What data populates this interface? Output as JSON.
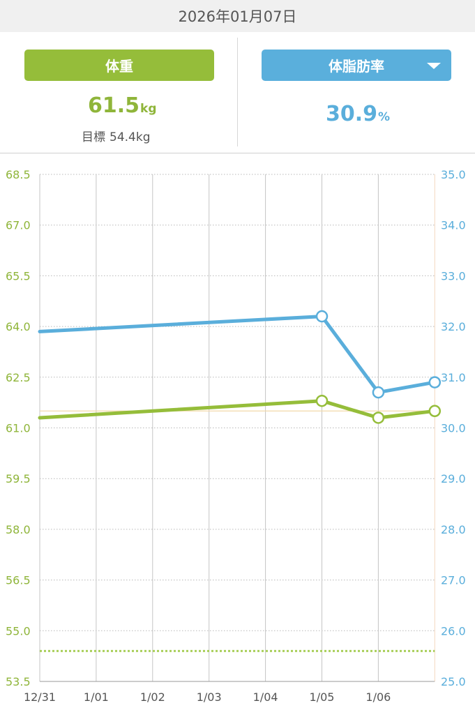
{
  "header": {
    "date": "2026年01月07日"
  },
  "weight_panel": {
    "label": "体重",
    "value": "61.5",
    "unit": "kg",
    "goal_label": "目標",
    "goal_value": "54.4kg"
  },
  "fat_panel": {
    "label": "体脂肪率",
    "value": "30.9",
    "unit": "%"
  },
  "colors": {
    "weight": "#95bd3a",
    "fat": "#5aaedb",
    "header_bg": "#f0f0f0"
  },
  "chart_data": {
    "type": "line",
    "categories": [
      "12/31",
      "1/01",
      "1/02",
      "1/03",
      "1/04",
      "1/05",
      "1/06"
    ],
    "left_axis": {
      "ylim": [
        53.5,
        68.5
      ],
      "ticks": [
        "53.5",
        "55.0",
        "56.5",
        "58.0",
        "59.5",
        "61.0",
        "62.5",
        "64.0",
        "65.5",
        "67.0",
        "68.5"
      ]
    },
    "right_axis": {
      "ylim": [
        25.0,
        35.0
      ],
      "ticks": [
        "25.0",
        "26.0",
        "27.0",
        "28.0",
        "29.0",
        "30.0",
        "31.0",
        "32.0",
        "33.0",
        "34.0",
        "35.0"
      ]
    },
    "series": [
      {
        "key": "weight",
        "axis": "left",
        "color": "#95bd3a",
        "points": [
          {
            "x": 0,
            "y": 61.3
          },
          {
            "x": 5,
            "y": 61.8
          },
          {
            "x": 6,
            "y": 61.3
          },
          {
            "x": 7,
            "y": 61.5
          }
        ],
        "markers": [
          5,
          6,
          7
        ]
      },
      {
        "key": "fat",
        "axis": "right",
        "color": "#5aaedb",
        "points": [
          {
            "x": 0,
            "y": 31.9
          },
          {
            "x": 5,
            "y": 32.2
          },
          {
            "x": 6,
            "y": 30.7
          },
          {
            "x": 7,
            "y": 30.9
          }
        ],
        "markers": [
          5,
          6,
          7
        ]
      }
    ],
    "goal_line": {
      "axis": "left",
      "value": 54.4,
      "color": "#a9cf5a"
    },
    "reference_line": {
      "axis": "left",
      "value": 61.5,
      "color": "#f2d9a8"
    },
    "grid": true
  }
}
